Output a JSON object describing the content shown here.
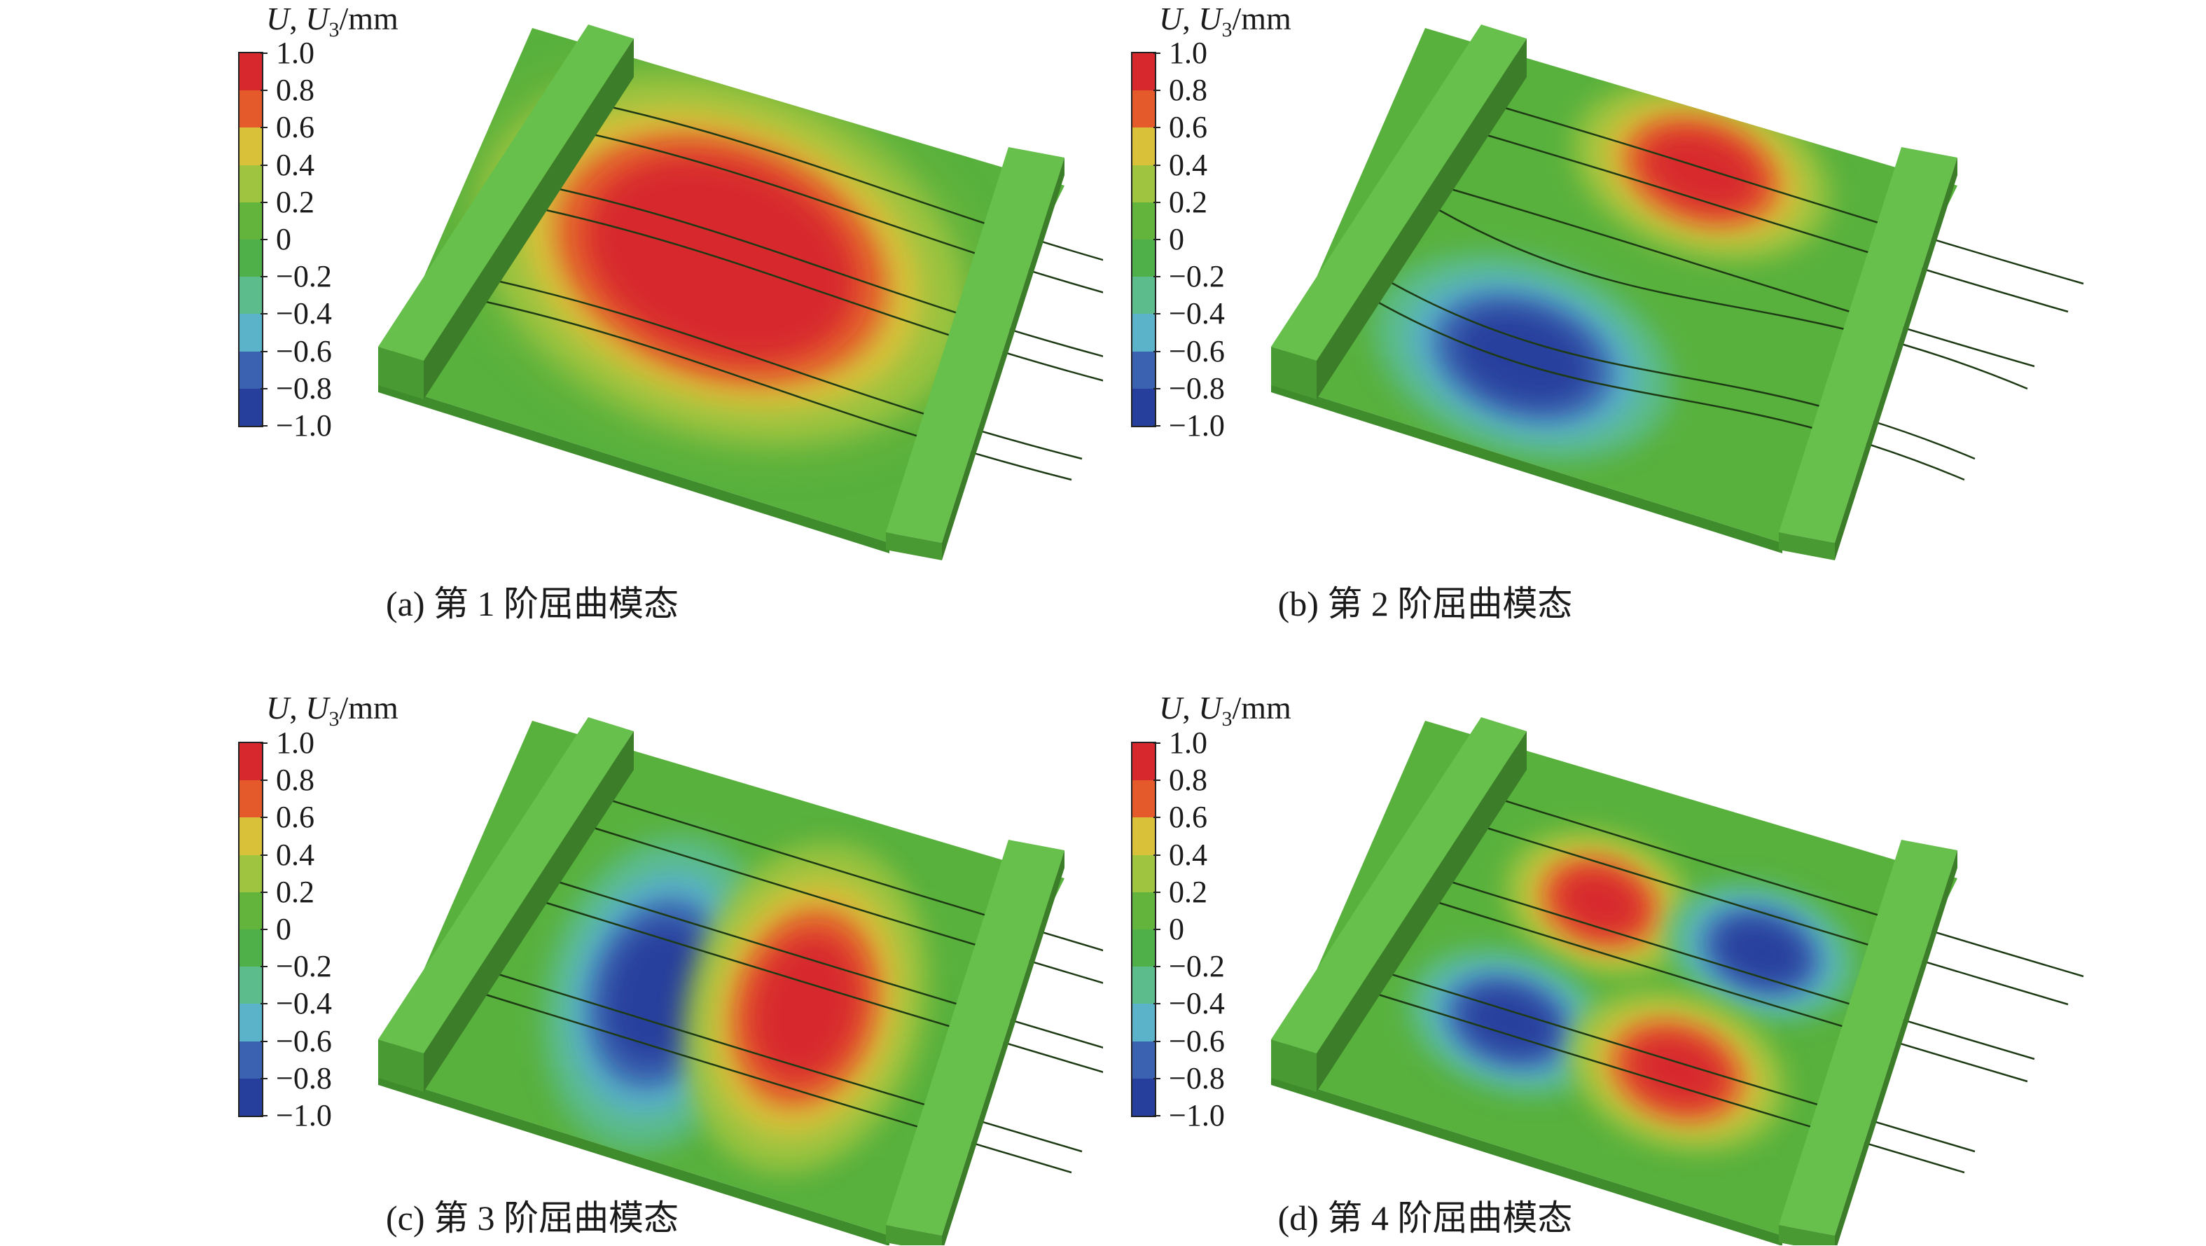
{
  "legend": {
    "title_var": "U",
    "title_comp": "U",
    "title_sub": "3",
    "title_unit": "/mm",
    "ticks": [
      "1.0",
      "0.8",
      "0.6",
      "0.4",
      "0.2",
      "0",
      "−0.2",
      "−0.4",
      "−0.6",
      "−0.8",
      "−1.0"
    ],
    "colors": [
      "#d7282d",
      "#e45a2b",
      "#d9c23a",
      "#9ec440",
      "#63b43c",
      "#4fb04a",
      "#5cbc8c",
      "#5ab3c9",
      "#3a62b0",
      "#263e9c"
    ]
  },
  "colors": {
    "plate": "#58b13d",
    "plate_side": "#3f8c2c",
    "beam_top": "#66c04b",
    "beam_front": "#4a9a33",
    "beam_side": "#3b7d28"
  },
  "panels": [
    {
      "id": "a",
      "caption": "(a) 第 1 阶屈曲模态",
      "mode": 1
    },
    {
      "id": "b",
      "caption": "(b) 第 2 阶屈曲模态",
      "mode": 2
    },
    {
      "id": "c",
      "caption": "(c) 第 3 阶屈曲模态",
      "mode": 3
    },
    {
      "id": "d",
      "caption": "(d) 第 4 阶屈曲模态",
      "mode": 4
    }
  ]
}
